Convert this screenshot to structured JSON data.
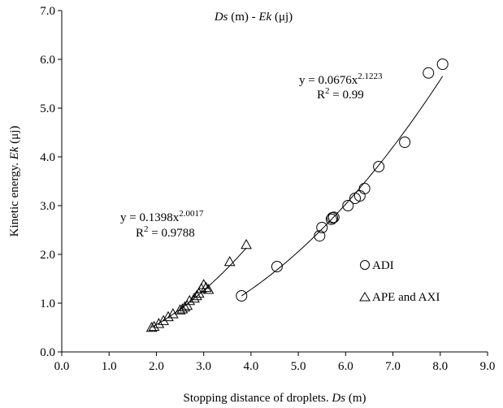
{
  "chart_data": {
    "type": "scatter",
    "title": {
      "var1": "Ds",
      "unit1": " (m) - ",
      "var2": "Ek",
      "unit2": " (μj)"
    },
    "xlabel": {
      "text": "Stopping distance of droplets. ",
      "var": "Ds",
      "unit": " (m)"
    },
    "ylabel": {
      "text": "Kinetic energy. ",
      "var": "Ek",
      "unit": " (μj)"
    },
    "xlim": [
      0,
      9
    ],
    "ylim": [
      0,
      7
    ],
    "xticks": [
      "0.0",
      "1.0",
      "2.0",
      "3.0",
      "4.0",
      "5.0",
      "6.0",
      "7.0",
      "8.0",
      "9.0"
    ],
    "yticks": [
      "0.0",
      "1.0",
      "2.0",
      "3.0",
      "4.0",
      "5.0",
      "6.0",
      "7.0"
    ],
    "grid": false,
    "series": [
      {
        "name": "ADI",
        "marker": "circle",
        "x": [
          3.8,
          4.55,
          5.45,
          5.5,
          5.7,
          5.72,
          5.75,
          6.05,
          6.2,
          6.3,
          6.4,
          6.7,
          7.25,
          7.75,
          8.05
        ],
        "y": [
          1.15,
          1.75,
          2.38,
          2.55,
          2.72,
          2.75,
          2.76,
          3.0,
          3.15,
          3.2,
          3.35,
          3.8,
          4.3,
          5.72,
          5.9
        ],
        "fit": {
          "a": 0.0676,
          "b": 2.1223,
          "range": [
            3.8,
            8.05
          ]
        },
        "equation": "y = 0.0676x",
        "exponent": "2.1223",
        "r2_label": "R",
        "r2_value": " = 0.99"
      },
      {
        "name": "APE and AXI",
        "marker": "triangle",
        "x": [
          1.9,
          1.95,
          2.05,
          2.15,
          2.25,
          2.35,
          2.5,
          2.55,
          2.6,
          2.65,
          2.7,
          2.8,
          2.85,
          2.9,
          2.95,
          3.0,
          3.05,
          3.1,
          3.55,
          3.9
        ],
        "y": [
          0.5,
          0.52,
          0.58,
          0.64,
          0.72,
          0.78,
          0.86,
          0.88,
          0.92,
          0.95,
          1.05,
          1.1,
          1.15,
          1.2,
          1.3,
          1.38,
          1.32,
          1.28,
          1.85,
          2.2
        ],
        "fit": {
          "a": 0.1398,
          "b": 2.0017,
          "range": [
            1.9,
            3.9
          ]
        },
        "equation": "y = 0.1398x",
        "exponent": "2.0017",
        "r2_label": "R",
        "r2_value": " = 0.9788"
      }
    ],
    "legend": {
      "placement": "right",
      "items": [
        "ADI",
        "APE and AXI"
      ]
    }
  }
}
